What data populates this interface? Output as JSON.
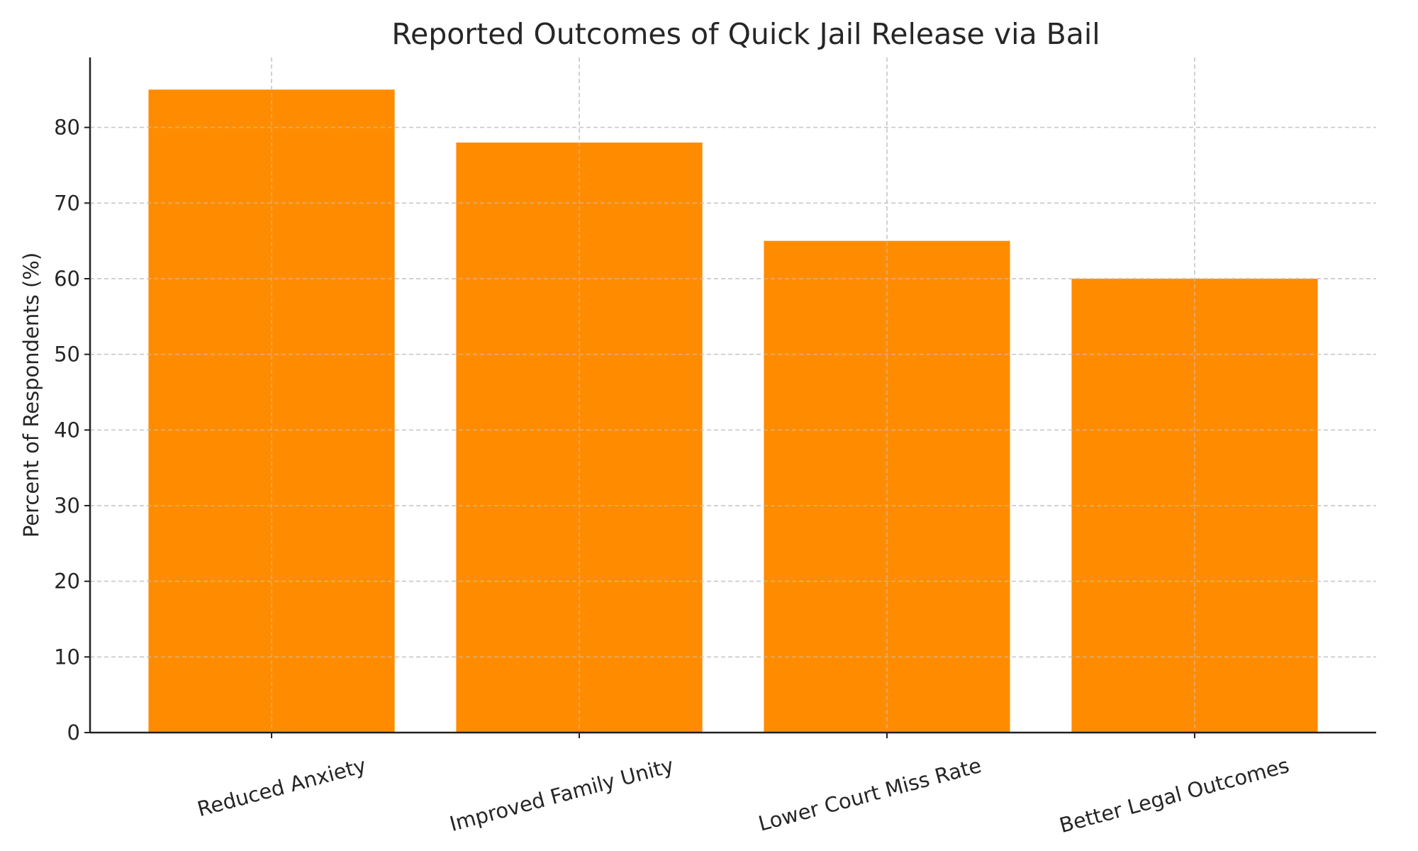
{
  "chart_data": {
    "type": "bar",
    "title": "Reported Outcomes of Quick Jail Release via Bail",
    "xlabel": "",
    "ylabel": "Percent of Respondents (%)",
    "categories": [
      "Reduced Anxiety",
      "Improved Family Unity",
      "Lower Court Miss Rate",
      "Better Legal Outcomes"
    ],
    "values": [
      85,
      78,
      65,
      60
    ],
    "ylim": [
      0,
      89.25
    ],
    "yticks": [
      0,
      10,
      20,
      30,
      40,
      50,
      60,
      70,
      80
    ],
    "grid": true,
    "bar_color": "#ff8c00",
    "xtick_rotation_deg": 15
  }
}
